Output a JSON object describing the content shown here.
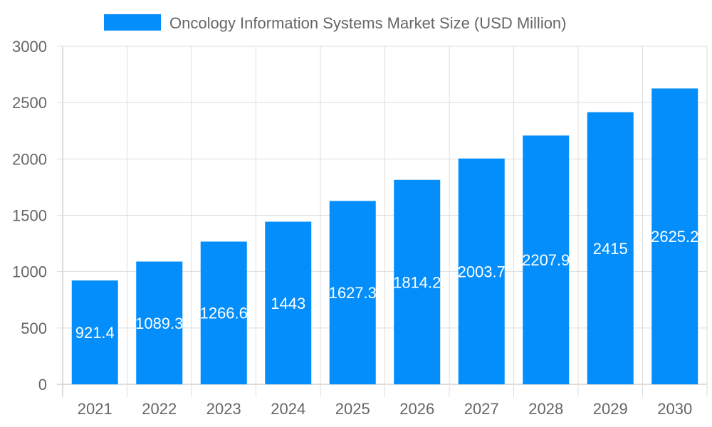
{
  "chart_data": {
    "type": "bar",
    "title": "Oncology Information Systems Market Size (USD Million)",
    "legend": [
      {
        "label": "Oncology Information Systems Market Size (USD Million)",
        "color": "#038efb"
      }
    ],
    "legend_position": "top-center",
    "categories": [
      "2021",
      "2022",
      "2023",
      "2024",
      "2025",
      "2026",
      "2027",
      "2028",
      "2029",
      "2030"
    ],
    "values": [
      921.4,
      1089.3,
      1266.6,
      1443,
      1627.3,
      1814.2,
      2003.7,
      2207.9,
      2415,
      2625.2
    ],
    "value_labels": [
      "921.4",
      "1089.3",
      "1266.6",
      "1443",
      "1627.3",
      "1814.2",
      "2003.7",
      "2207.9",
      "2415",
      "2625.2"
    ],
    "xlabel": "",
    "ylabel": "",
    "ylim": [
      0,
      3000
    ],
    "yticks": [
      "0",
      "500",
      "1000",
      "1500",
      "2000",
      "2500",
      "3000"
    ],
    "grid": true,
    "bar_color": "#038efb"
  }
}
